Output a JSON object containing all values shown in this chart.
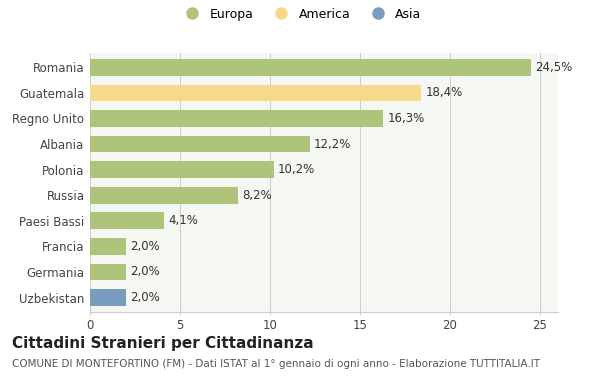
{
  "categories": [
    "Romania",
    "Guatemala",
    "Regno Unito",
    "Albania",
    "Polonia",
    "Russia",
    "Paesi Bassi",
    "Francia",
    "Germania",
    "Uzbekistan"
  ],
  "values": [
    24.5,
    18.4,
    16.3,
    12.2,
    10.2,
    8.2,
    4.1,
    2.0,
    2.0,
    2.0
  ],
  "labels": [
    "24,5%",
    "18,4%",
    "16,3%",
    "12,2%",
    "10,2%",
    "8,2%",
    "4,1%",
    "2,0%",
    "2,0%",
    "2,0%"
  ],
  "colors": [
    "#adc47a",
    "#f8d98b",
    "#adc47a",
    "#adc47a",
    "#adc47a",
    "#adc47a",
    "#adc47a",
    "#adc47a",
    "#adc47a",
    "#7a9cbf"
  ],
  "legend": [
    {
      "label": "Europa",
      "color": "#adc47a"
    },
    {
      "label": "America",
      "color": "#f8d98b"
    },
    {
      "label": "Asia",
      "color": "#7a9cbf"
    }
  ],
  "title": "Cittadini Stranieri per Cittadinanza",
  "subtitle": "COMUNE DI MONTEFORTINO (FM) - Dati ISTAT al 1° gennaio di ogni anno - Elaborazione TUTTITALIA.IT",
  "xlim": [
    0,
    26
  ],
  "xticks": [
    0,
    5,
    10,
    15,
    20,
    25
  ],
  "background_color": "#ffffff",
  "plot_bg_color": "#f5f8f2",
  "grid_color": "#cccccc",
  "bar_height": 0.65,
  "title_fontsize": 11,
  "subtitle_fontsize": 7.5,
  "label_fontsize": 8.5,
  "tick_fontsize": 8.5,
  "legend_fontsize": 9
}
